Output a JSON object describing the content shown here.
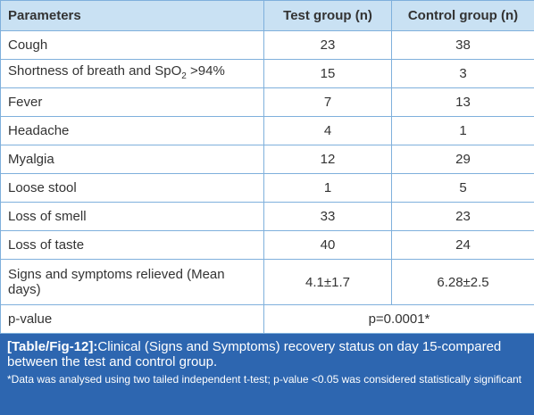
{
  "table": {
    "header": [
      "Parameters",
      "Test group (n)",
      "Control group (n)"
    ],
    "rows": [
      [
        "Cough",
        23,
        38
      ],
      [
        {
          "parts": [
            "Shortness of breath and SpO",
            "2",
            " >94%"
          ]
        },
        15,
        3
      ],
      [
        "Fever",
        7,
        13
      ],
      [
        "Headache",
        4,
        1
      ],
      [
        "Myalgia",
        12,
        29
      ],
      [
        "Loose stool",
        1,
        5
      ],
      [
        "Loss of smell",
        33,
        23
      ],
      [
        "Loss of taste",
        40,
        24
      ],
      [
        "Signs and symptoms relieved (Mean days)",
        "4.1±1.7",
        "6.28±2.5"
      ]
    ],
    "pvalue": {
      "label": "p-value",
      "value": "p=0.0001*"
    }
  },
  "caption": {
    "tag": "[Table/Fig-12]:",
    "text": "Clinical (Signs and Symptoms) recovery status on day 15-compared between the test and control group.",
    "note": "*Data was analysed using two tailed independent t-test; p-value <0.05 was considered statistically significant"
  }
}
